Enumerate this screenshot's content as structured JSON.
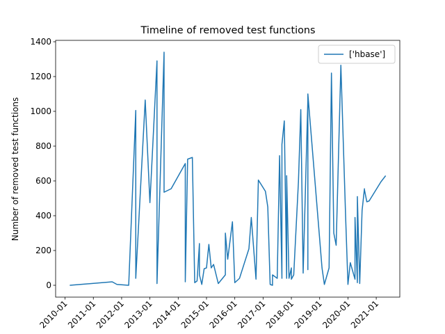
{
  "chart_data": {
    "type": "line",
    "title": "Timeline of removed test functions",
    "ylabel": "Number of removed test functions",
    "legend": "upper right",
    "x": [
      "2010-03",
      "2011-09",
      "2011-11",
      "2012-04",
      "2012-07",
      "2012-07",
      "2012-11",
      "2013-01",
      "2013-04",
      "2013-04",
      "2013-07",
      "2013-07",
      "2013-10",
      "2014-04",
      "2014-04",
      "2014-05",
      "2014-07",
      "2014-08",
      "2014-09",
      "2014-10",
      "2014-10",
      "2014-11",
      "2014-12",
      "2015-01",
      "2015-02",
      "2015-03",
      "2015-04",
      "2015-06",
      "2015-09",
      "2015-09",
      "2015-10",
      "2015-12",
      "2016-01",
      "2016-03",
      "2016-07",
      "2016-08",
      "2016-10",
      "2016-11",
      "2017-02",
      "2017-03",
      "2017-04",
      "2017-05",
      "2017-05",
      "2017-07",
      "2017-08",
      "2017-09",
      "2017-09",
      "2017-10",
      "2017-11",
      "2017-11",
      "2017-12",
      "2018-01",
      "2018-01",
      "2018-02",
      "2018-04",
      "2018-05",
      "2018-06",
      "2018-08",
      "2018-08",
      "2018-08",
      "2019-02",
      "2019-03",
      "2019-05",
      "2019-06",
      "2019-07",
      "2019-08",
      "2019-10",
      "2019-12",
      "2020-01",
      "2020-02",
      "2020-04",
      "2020-04",
      "2020-05",
      "2020-05",
      "2020-06",
      "2020-07",
      "2020-08",
      "2020-08",
      "2020-09",
      "2020-10",
      "2021-03",
      "2021-05"
    ],
    "series": [
      {
        "name": "['hbase']",
        "color": "#1f77b4",
        "values": [
          0,
          20,
          5,
          0,
          1005,
          40,
          1065,
          475,
          1290,
          10,
          1340,
          535,
          555,
          700,
          20,
          725,
          735,
          15,
          25,
          240,
          60,
          5,
          95,
          100,
          235,
          100,
          120,
          10,
          60,
          300,
          150,
          365,
          15,
          40,
          210,
          390,
          35,
          605,
          540,
          450,
          5,
          0,
          60,
          40,
          745,
          40,
          810,
          945,
          40,
          630,
          40,
          100,
          35,
          60,
          595,
          1010,
          70,
          1065,
          90,
          1100,
          100,
          5,
          100,
          1220,
          300,
          230,
          1265,
          400,
          5,
          130,
          35,
          390,
          15,
          510,
          10,
          430,
          555,
          550,
          480,
          485,
          595,
          630
        ]
      }
    ],
    "xlim": [
      "2009-09",
      "2021-11"
    ],
    "xticks": [
      "2010-01",
      "2011-01",
      "2012-01",
      "2013-01",
      "2014-01",
      "2015-01",
      "2016-01",
      "2017-01",
      "2018-01",
      "2019-01",
      "2020-01",
      "2021-01"
    ],
    "ylim": [
      -68,
      1408
    ],
    "yticks": [
      0,
      200,
      400,
      600,
      800,
      1000,
      1200,
      1400
    ]
  }
}
